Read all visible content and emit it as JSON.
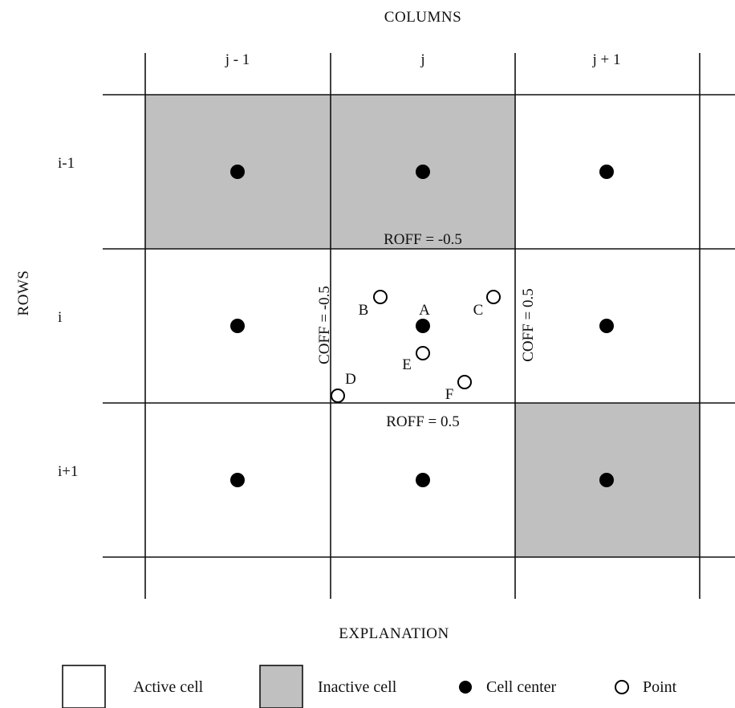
{
  "title": "COLUMNS",
  "rows_axis_label": "ROWS",
  "column_labels": [
    "j - 1",
    "j",
    "j + 1"
  ],
  "row_labels": [
    "i-1",
    "i",
    "i+1"
  ],
  "cell_states": [
    [
      "inactive",
      "inactive",
      "active"
    ],
    [
      "active",
      "active",
      "active"
    ],
    [
      "active",
      "active",
      "inactive"
    ]
  ],
  "offset_labels": {
    "roff_top": "ROFF = -0.5",
    "roff_bottom": "ROFF = 0.5",
    "coff_left": "COFF = -0.5",
    "coff_right": "COFF = 0.5"
  },
  "points": [
    {
      "label": "A",
      "kind": "cell-center"
    },
    {
      "label": "B",
      "kind": "point"
    },
    {
      "label": "C",
      "kind": "point"
    },
    {
      "label": "D",
      "kind": "point"
    },
    {
      "label": "E",
      "kind": "point"
    },
    {
      "label": "F",
      "kind": "point"
    }
  ],
  "explanation": {
    "heading": "EXPLANATION",
    "items": [
      {
        "label": "Active cell",
        "symbol": "active-cell-swatch"
      },
      {
        "label": "Inactive cell",
        "symbol": "inactive-cell-swatch"
      },
      {
        "label": "Cell center",
        "symbol": "filled-circle-icon"
      },
      {
        "label": "Point",
        "symbol": "open-circle-icon"
      }
    ]
  },
  "colors": {
    "inactive_fill": "#c0c0c0",
    "active_fill": "#ffffff",
    "line": "#111111"
  }
}
